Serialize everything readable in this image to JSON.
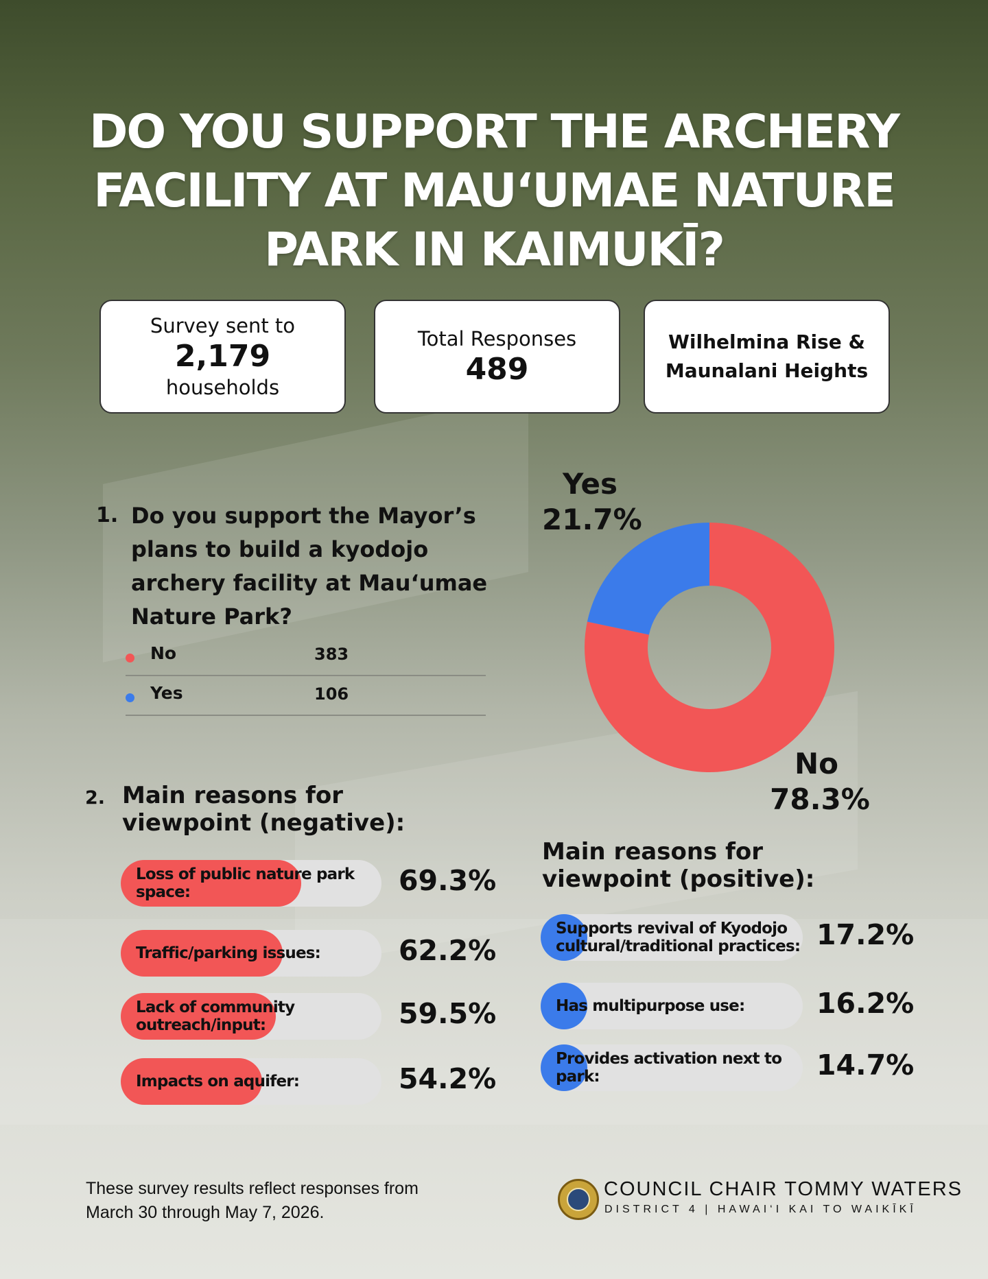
{
  "title": "DO YOU SUPPORT THE ARCHERY FACILITY AT MAU‘UMAE NATURE PARK IN KAIMUKĪ?",
  "stats": {
    "sent_label": "Survey sent to",
    "sent_value": "2,179",
    "sent_unit": "households",
    "responses_label": "Total Responses",
    "responses_value": "489",
    "region": "Wilhelmina Rise & Maunalani Heights"
  },
  "q1": {
    "number": "1.",
    "text": "Do you support the Mayor’s plans to build a kyodojo archery facility at Mau‘umae Nature Park?",
    "legend": [
      {
        "label": "No",
        "value": "383",
        "color": "#f25656"
      },
      {
        "label": "Yes",
        "value": "106",
        "color": "#3b7bea"
      }
    ]
  },
  "q2": {
    "number": "2.",
    "negative_heading": "Main reasons for viewpoint (negative):",
    "positive_heading": "Main reasons for viewpoint (positive):"
  },
  "colors": {
    "red": "#f25656",
    "blue": "#3b7bea",
    "track": "#e1e1e1"
  },
  "chart_data": [
    {
      "type": "pie",
      "categories": [
        "No",
        "Yes"
      ],
      "values": [
        78.3,
        21.7
      ],
      "counts": [
        383,
        106
      ],
      "labels": [
        "No",
        "Yes"
      ],
      "value_labels": [
        "78.3%",
        "21.7%"
      ],
      "colors": [
        "#f25656",
        "#3b7bea"
      ]
    },
    {
      "type": "bar",
      "orientation": "horizontal",
      "categories": [
        "Loss of public nature park space:",
        "Traffic/parking issues:",
        "Lack of community outreach/input:",
        "Impacts on aquifer:"
      ],
      "values": [
        69.3,
        62.2,
        59.5,
        54.2
      ],
      "value_labels": [
        "69.3%",
        "62.2%",
        "59.5%",
        "54.2%"
      ],
      "xlim": [
        0,
        100
      ],
      "color": "#f25656"
    },
    {
      "type": "bar",
      "orientation": "horizontal",
      "categories": [
        "Supports revival of Kyodojo cultural/traditional practices:",
        "Has multipurpose use:",
        "Provides activation next to park:"
      ],
      "values": [
        17.2,
        16.2,
        14.7
      ],
      "value_labels": [
        "17.2%",
        "16.2%",
        "14.7%"
      ],
      "xlim": [
        0,
        100
      ],
      "color": "#3b7bea"
    }
  ],
  "footer": {
    "note": "These survey results reflect responses from March 30 through May 7, 2026.",
    "org_name": "COUNCIL CHAIR TOMMY WATERS",
    "org_sub": "DISTRICT 4 | HAWAI‘I KAI TO WAIKĪKĪ"
  }
}
